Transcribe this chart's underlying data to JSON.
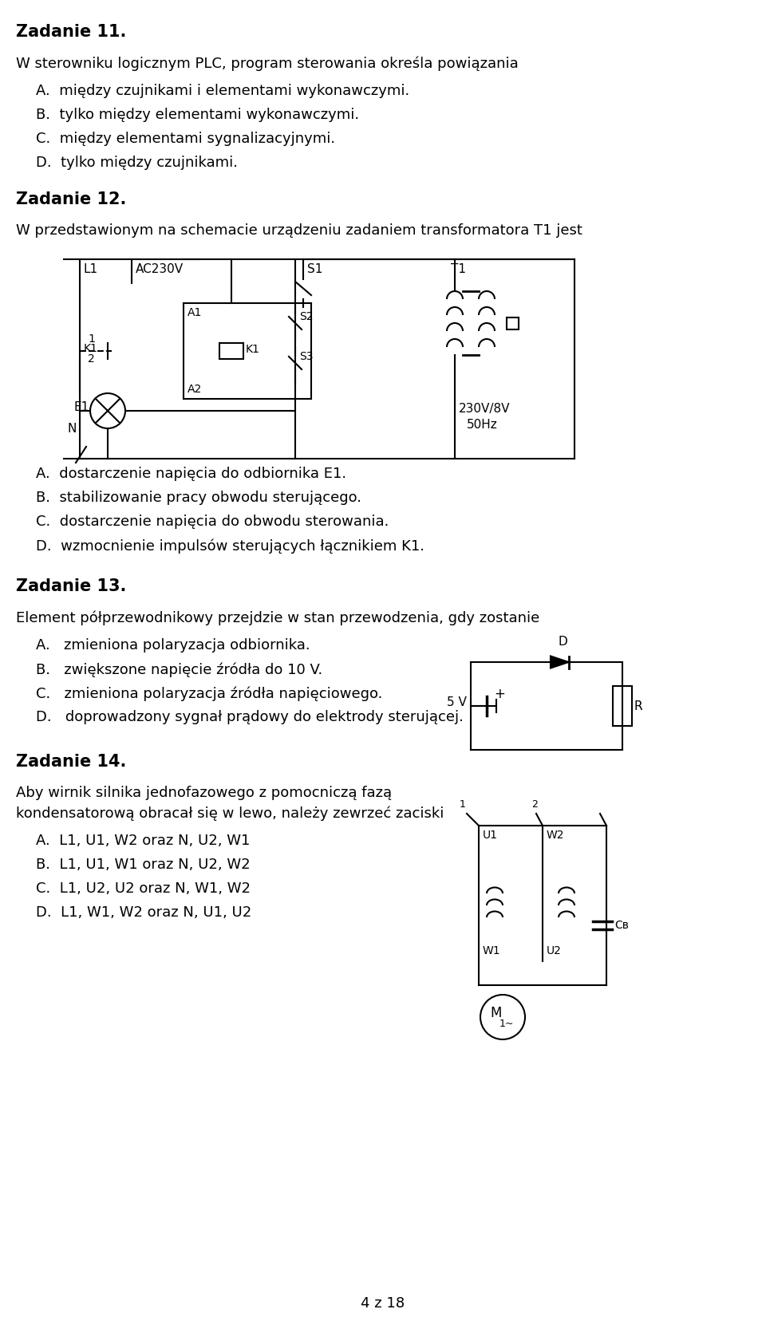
{
  "title": "",
  "background_color": "#ffffff",
  "text_color": "#000000",
  "page_number": "4 z 18",
  "zadanie11": {
    "header": "Zadanie 11.",
    "question": "W sterowniku logicznym PLC, program sterowania określa powiązania",
    "options": [
      "A.  między czujnikami i elementami wykonawczymi.",
      "B.  tylko między elementami wykonawczymi.",
      "C.  między elementami sygnalizacyjnymi.",
      "D.  tylko między czujnikami."
    ]
  },
  "zadanie12": {
    "header": "Zadanie 12.",
    "question": "W przedstawionym na schemacie urządzeniu zadaniem transformatora T1 jest",
    "options": [
      "A.  dostarczenie napięcia do odbiornika E1.",
      "B.  stabilizowanie pracy obwodu sterującego.",
      "C.  dostarczenie napięcia do obwodu sterowania.",
      "D.  wzmocnienie impulsów sterujących łącznikiem K1."
    ]
  },
  "zadanie13": {
    "header": "Zadanie 13.",
    "question": "Element półprzewodnikowy przejdzie w stan przewodzenia, gdy zostanie",
    "options": [
      "A.   zmieniona polaryzacja odbiornika.",
      "B.   zwiększone napięcie źródła do 10 V.",
      "C.   zmieniona polaryzacja źródła napięciowego.",
      "D.   doprowadzony sygnał prądowy do elektrody sterującej."
    ]
  },
  "zadanie14": {
    "header": "Zadanie 14.",
    "question": "Aby wirnik silnika jednofazowego z pomocniczą fazą\nkondensatorową obracał się w lewo, należy zewrzeć zaciski",
    "options": [
      "A.  L1, U1, W2 oraz N, U2, W1",
      "B.  L1, U1, W1 oraz N, U2, W2",
      "C.  L1, U2, U2 oraz N, W1, W2",
      "D.  L1, W1, W2 oraz N, U1, U2"
    ]
  }
}
